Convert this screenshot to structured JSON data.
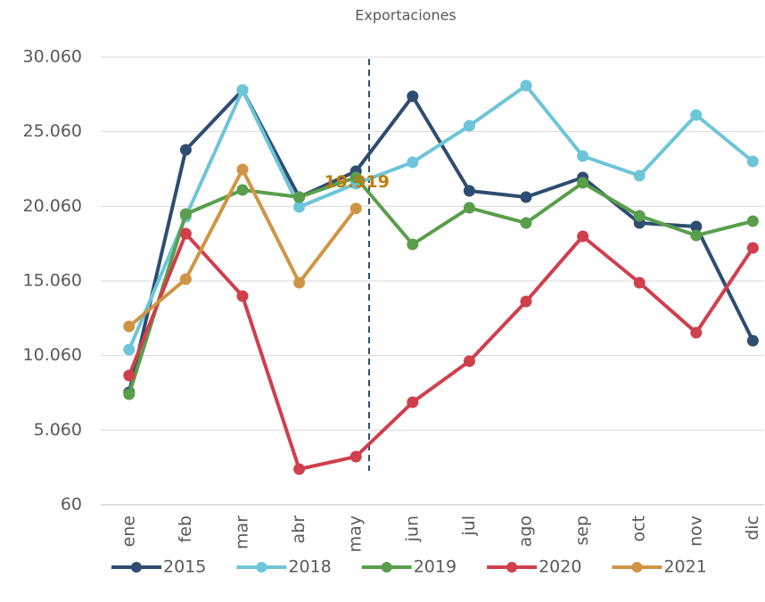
{
  "chart_data": {
    "type": "line",
    "title": "Exportaciones",
    "categories": [
      "ene",
      "feb",
      "mar",
      "abr",
      "may",
      "jun",
      "jul",
      "ago",
      "sep",
      "oct",
      "nov",
      "dic"
    ],
    "ylim": [
      60,
      30060
    ],
    "yticks": [
      {
        "value": 60,
        "label": "60"
      },
      {
        "value": 5060,
        "label": "5.060"
      },
      {
        "value": 10060,
        "label": "10.060"
      },
      {
        "value": 15060,
        "label": "15.060"
      },
      {
        "value": 20060,
        "label": "20.060"
      },
      {
        "value": 25060,
        "label": "25.060"
      },
      {
        "value": 30060,
        "label": "30.060"
      }
    ],
    "grid": true,
    "legend": "bottom",
    "series": [
      {
        "name": "2015",
        "color": "#2e4d70",
        "values": [
          7590,
          23844,
          27848,
          20677,
          22410,
          27430,
          21096,
          20677,
          21992,
          18944,
          18705,
          11056
        ]
      },
      {
        "name": "2018",
        "color": "#6cc5d8",
        "values": [
          10458,
          19362,
          27848,
          20020,
          21574,
          23008,
          25458,
          28147,
          23426,
          22111,
          26175,
          23068
        ]
      },
      {
        "name": "2019",
        "color": "#5a9e4b",
        "values": [
          7470,
          19542,
          21155,
          20677,
          21992,
          17510,
          19960,
          18944,
          21633,
          19422,
          18107,
          19064
        ]
      },
      {
        "name": "2020",
        "color": "#cf3f4c",
        "values": [
          8725,
          18227,
          14044,
          2450,
          3287,
          6932,
          9681,
          13685,
          18048,
          14940,
          11594,
          17271
        ]
      },
      {
        "name": "2021",
        "color": "#d09544",
        "values": [
          12012,
          15179,
          22530,
          14940,
          19919,
          null,
          null,
          null,
          null,
          null,
          null,
          null
        ],
        "value_labels": [
          null,
          null,
          null,
          null,
          "19.919",
          null,
          null,
          null,
          null,
          null,
          null,
          null
        ],
        "label_color": "#c07d0a"
      }
    ]
  }
}
